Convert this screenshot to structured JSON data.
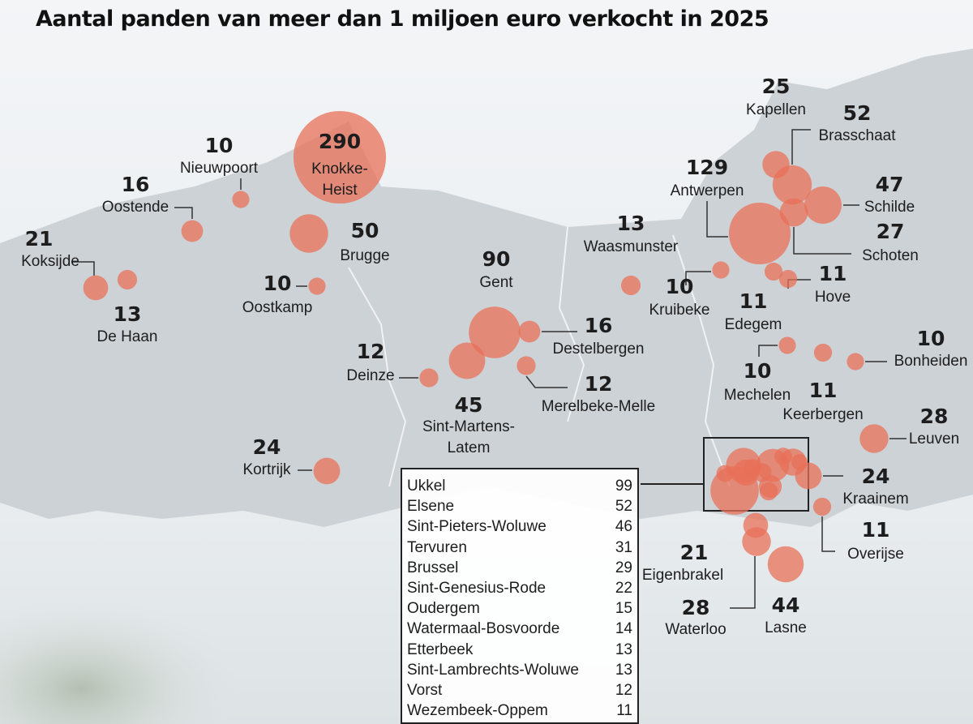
{
  "title": "Aantal panden van meer dan 1 miljoen euro verkocht in 2025",
  "places": [
    {
      "name": "Koksijde",
      "count": 21
    },
    {
      "name": "De Haan",
      "count": 13
    },
    {
      "name": "Oostende",
      "count": 16
    },
    {
      "name": "Nieuwpoort",
      "count": 10
    },
    {
      "name": "Knokke-\nHeist",
      "count": 290
    },
    {
      "name": "Brugge",
      "count": 50
    },
    {
      "name": "Oostkamp",
      "count": 10
    },
    {
      "name": "Gent",
      "count": 90
    },
    {
      "name": "Sint-Martens-\nLatem",
      "count": 45
    },
    {
      "name": "Destelbergen",
      "count": 16
    },
    {
      "name": "Merelbeke-Melle",
      "count": 12
    },
    {
      "name": "Deinze",
      "count": 12
    },
    {
      "name": "Kortrijk",
      "count": 24
    },
    {
      "name": "Waasmunster",
      "count": 13
    },
    {
      "name": "Antwerpen",
      "count": 129
    },
    {
      "name": "Kapellen",
      "count": 25
    },
    {
      "name": "Brasschaat",
      "count": 52
    },
    {
      "name": "Schilde",
      "count": 47
    },
    {
      "name": "Schoten",
      "count": 27
    },
    {
      "name": "Kruibeke",
      "count": 10
    },
    {
      "name": "Edegem",
      "count": 11
    },
    {
      "name": "Hove",
      "count": 11
    },
    {
      "name": "Mechelen",
      "count": 10
    },
    {
      "name": "Keerbergen",
      "count": 11
    },
    {
      "name": "Bonheiden",
      "count": 10
    },
    {
      "name": "Leuven",
      "count": 28
    },
    {
      "name": "Kraainem",
      "count": 24
    },
    {
      "name": "Overijse",
      "count": 11
    },
    {
      "name": "Eigenbrakel",
      "count": 21
    },
    {
      "name": "Waterloo",
      "count": 28
    },
    {
      "name": "Lasne",
      "count": 44
    }
  ],
  "inset": {
    "rows": [
      {
        "name": "Ukkel",
        "count": 99
      },
      {
        "name": "Elsene",
        "count": 52
      },
      {
        "name": "Sint-Pieters-Woluwe",
        "count": 46
      },
      {
        "name": "Tervuren",
        "count": 31
      },
      {
        "name": "Brussel",
        "count": 29
      },
      {
        "name": "Sint-Genesius-Rode",
        "count": 22
      },
      {
        "name": "Oudergem",
        "count": 15
      },
      {
        "name": "Watermaal-Bosvoorde",
        "count": 14
      },
      {
        "name": "Etterbeek",
        "count": 13
      },
      {
        "name": "Sint-Lambrechts-Woluwe",
        "count": 13
      },
      {
        "name": "Vorst",
        "count": 12
      },
      {
        "name": "Wezembeek-Oppem",
        "count": 11
      }
    ]
  }
}
